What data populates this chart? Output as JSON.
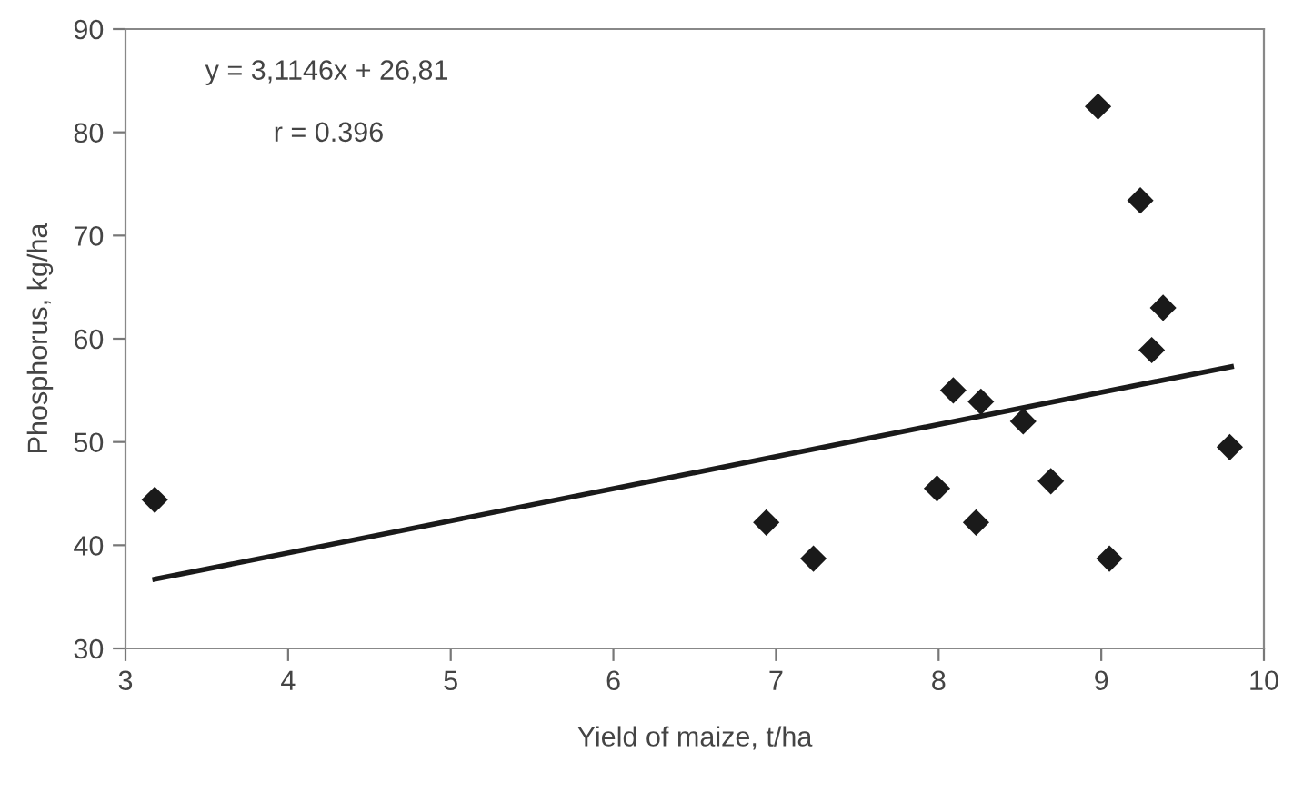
{
  "chart_data": {
    "type": "scatter",
    "xlabel": "Yield of maize, t/ha",
    "ylabel": "Phosphorus, kg/ha",
    "xlim": [
      3,
      10
    ],
    "xticks": [
      3,
      4,
      5,
      6,
      7,
      8,
      9,
      10
    ],
    "ylim": [
      30,
      90
    ],
    "yticks": [
      30,
      40,
      50,
      60,
      70,
      80,
      90
    ],
    "grid": false,
    "legend": false,
    "annotations": [
      "y = 3,1146x + 26,81",
      "r = 0.396"
    ],
    "series": [
      {
        "color": "#1a1a1a",
        "marker": "diamond",
        "x": [
          3.18,
          6.94,
          7.23,
          7.99,
          8.09,
          8.23,
          8.26,
          8.52,
          8.69,
          8.98,
          9.05,
          9.24,
          9.31,
          9.38,
          9.79
        ],
        "values": [
          44.4,
          42.2,
          38.7,
          45.5,
          55.0,
          42.2,
          53.9,
          52.0,
          46.2,
          82.5,
          38.7,
          73.4,
          58.9,
          63.0,
          49.5
        ]
      },
      {
        "type": "line",
        "color": "#1a1a1a",
        "line_style": "solid",
        "marker": "none",
        "x": [
          3.18,
          9.8
        ],
        "values": [
          36.7,
          57.3
        ]
      }
    ]
  }
}
